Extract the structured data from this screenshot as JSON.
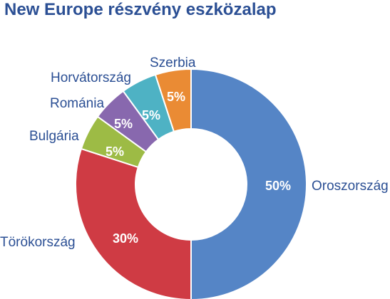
{
  "chart_data": {
    "type": "pie",
    "style": "donut",
    "title": "New Europe részvény eszközalap",
    "slices": [
      {
        "label": "Oroszország",
        "value": 50,
        "value_label": "50%",
        "color": "#5585c6"
      },
      {
        "label": "Törökország",
        "value": 30,
        "value_label": "30%",
        "color": "#cf3b44"
      },
      {
        "label": "Bulgária",
        "value": 5,
        "value_label": "5%",
        "color": "#9dbb45"
      },
      {
        "label": "Románia",
        "value": 5,
        "value_label": "5%",
        "color": "#8868ae"
      },
      {
        "label": "Horvátország",
        "value": 5,
        "value_label": "5%",
        "color": "#4eb2c4"
      },
      {
        "label": "Szerbia",
        "value": 5,
        "value_label": "5%",
        "color": "#ea8b34"
      }
    ]
  }
}
